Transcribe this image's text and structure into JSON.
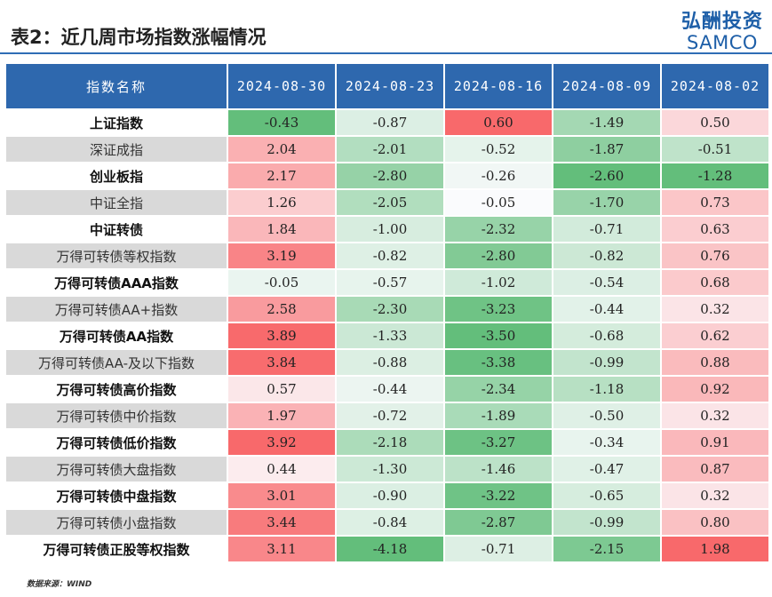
{
  "header": {
    "title": "表2：近几周市场指数涨幅情况",
    "logo_cn": "弘酬投资",
    "logo_en": "SAMCO"
  },
  "table": {
    "columns": [
      "指数名称",
      "2024-08-30",
      "2024-08-23",
      "2024-08-16",
      "2024-08-09",
      "2024-08-02"
    ],
    "rows": [
      {
        "name": "上证指数",
        "values": [
          "-0.43",
          "-0.87",
          "0.60",
          "-1.49",
          "0.50"
        ]
      },
      {
        "name": "深证成指",
        "values": [
          "2.04",
          "-2.01",
          "-0.52",
          "-1.87",
          "-0.51"
        ]
      },
      {
        "name": "创业板指",
        "values": [
          "2.17",
          "-2.80",
          "-0.26",
          "-2.60",
          "-1.28"
        ]
      },
      {
        "name": "中证全指",
        "values": [
          "1.26",
          "-2.05",
          "-0.05",
          "-1.70",
          "0.73"
        ]
      },
      {
        "name": "中证转债",
        "values": [
          "1.84",
          "-1.00",
          "-2.32",
          "-0.71",
          "0.63"
        ]
      },
      {
        "name": "万得可转债等权指数",
        "values": [
          "3.19",
          "-0.82",
          "-2.80",
          "-0.82",
          "0.76"
        ]
      },
      {
        "name": "万得可转债AAA指数",
        "values": [
          "-0.05",
          "-0.57",
          "-1.02",
          "-0.54",
          "0.68"
        ]
      },
      {
        "name": "万得可转债AA+指数",
        "values": [
          "2.58",
          "-2.30",
          "-3.23",
          "-0.44",
          "0.32"
        ]
      },
      {
        "name": "万得可转债AA指数",
        "values": [
          "3.89",
          "-1.33",
          "-3.50",
          "-0.68",
          "0.62"
        ]
      },
      {
        "name": "万得可转债AA-及以下指数",
        "values": [
          "3.84",
          "-0.88",
          "-3.38",
          "-0.99",
          "0.88"
        ]
      },
      {
        "name": "万得可转债高价指数",
        "values": [
          "0.57",
          "-0.44",
          "-2.34",
          "-1.18",
          "0.92"
        ]
      },
      {
        "name": "万得可转债中价指数",
        "values": [
          "1.97",
          "-0.72",
          "-1.89",
          "-0.50",
          "0.32"
        ]
      },
      {
        "name": "万得可转债低价指数",
        "values": [
          "3.92",
          "-2.18",
          "-3.27",
          "-0.34",
          "0.91"
        ]
      },
      {
        "name": "万得可转债大盘指数",
        "values": [
          "0.44",
          "-1.30",
          "-1.46",
          "-0.47",
          "0.87"
        ]
      },
      {
        "name": "万得可转债中盘指数",
        "values": [
          "3.01",
          "-0.90",
          "-3.22",
          "-0.65",
          "0.32"
        ]
      },
      {
        "name": "万得可转债小盘指数",
        "values": [
          "3.44",
          "-0.84",
          "-2.87",
          "-0.99",
          "0.80"
        ]
      },
      {
        "name": "万得可转债正股等权指数",
        "values": [
          "3.11",
          "-4.18",
          "-0.71",
          "-2.15",
          "1.98"
        ]
      }
    ]
  },
  "colors": {
    "header_bg": "#2e68ae",
    "positive": "#f8696b",
    "negative": "#63be7b",
    "neutral": "#fcfcff"
  },
  "footer": {
    "source": "数据来源：WIND"
  }
}
